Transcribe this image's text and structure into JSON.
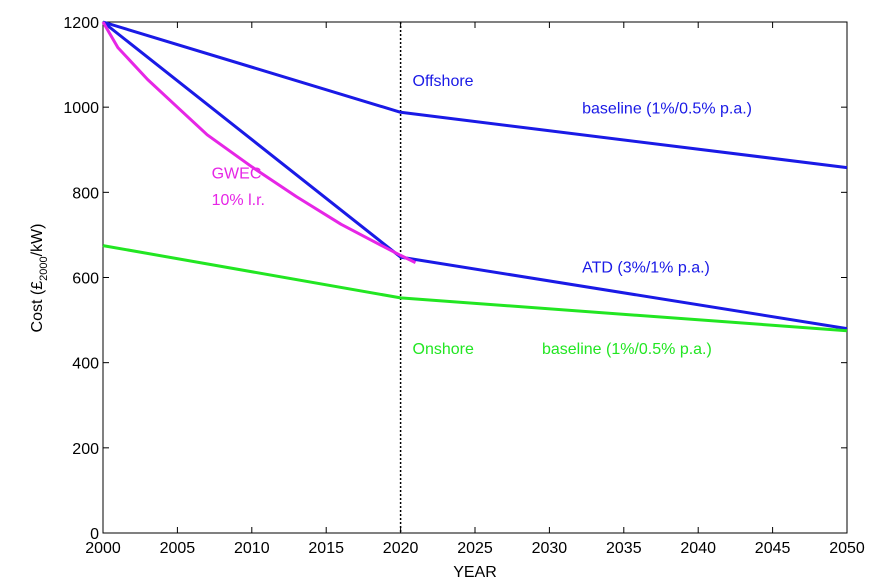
{
  "chart_data": {
    "type": "line",
    "title": "",
    "xlabel": "YEAR",
    "ylabel_main": "Cost (£",
    "ylabel_sub": "2000",
    "ylabel_tail": "/kW)",
    "xlim": [
      2000,
      2050
    ],
    "ylim": [
      0,
      1200
    ],
    "xticks": [
      2000,
      2005,
      2010,
      2015,
      2020,
      2025,
      2030,
      2035,
      2040,
      2045,
      2050
    ],
    "yticks": [
      0,
      200,
      400,
      600,
      800,
      1000,
      1200
    ],
    "grid": false,
    "vline": {
      "x": 2020,
      "style": "dotted",
      "color": "#000000"
    },
    "series": [
      {
        "name": "Offshore baseline (1%/0.5% p.a.)",
        "color": "#1a1ae6",
        "x": [
          2000,
          2020,
          2050
        ],
        "y": [
          1200,
          988,
          858
        ]
      },
      {
        "name": "ATD (3%/1% p.a.)",
        "color": "#1a1ae6",
        "x": [
          2000,
          2020,
          2050
        ],
        "y": [
          1200,
          648,
          480
        ]
      },
      {
        "name": "Onshore baseline (1%/0.5% p.a.)",
        "color": "#22e622",
        "x": [
          2000,
          2020,
          2050
        ],
        "y": [
          675,
          552,
          475
        ]
      },
      {
        "name": "GWEC 10% l.r.",
        "color": "#e626e6",
        "x": [
          2000,
          2001,
          2003,
          2005,
          2007,
          2010,
          2013,
          2016,
          2019,
          2020,
          2021
        ],
        "y": [
          1200,
          1140,
          1065,
          1000,
          935,
          860,
          790,
          725,
          670,
          652,
          635
        ]
      }
    ],
    "annotations": [
      {
        "text": "Offshore",
        "x": 2020.8,
        "y": 1050,
        "color": "#1a1ae6"
      },
      {
        "text": "baseline (1%/0.5% p.a.)",
        "x": 2032.2,
        "y": 985,
        "color": "#1a1ae6"
      },
      {
        "text": "GWEC",
        "x": 2007.3,
        "y": 832,
        "color": "#e626e6"
      },
      {
        "text": "10% l.r.",
        "x": 2007.3,
        "y": 770,
        "color": "#e626e6"
      },
      {
        "text": "ATD (3%/1% p.a.)",
        "x": 2032.2,
        "y": 612,
        "color": "#1a1ae6"
      },
      {
        "text": "Onshore",
        "x": 2020.8,
        "y": 420,
        "color": "#22e622"
      },
      {
        "text": "baseline (1%/0.5% p.a.)",
        "x": 2029.5,
        "y": 420,
        "color": "#22e622"
      }
    ]
  }
}
